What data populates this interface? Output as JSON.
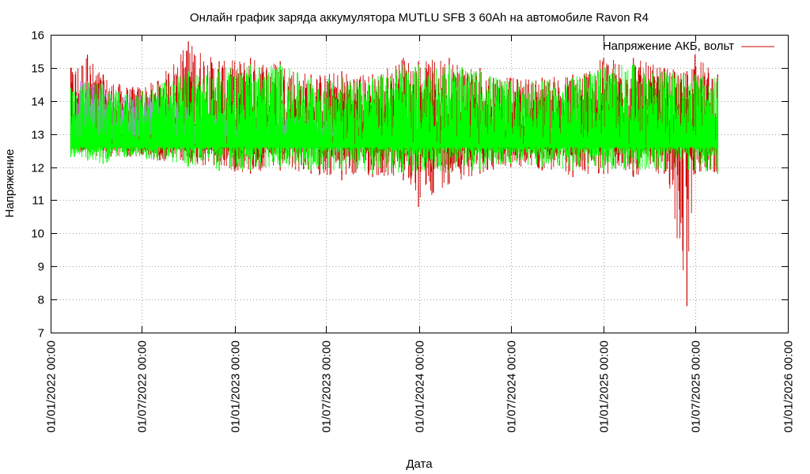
{
  "chart_data": {
    "type": "line",
    "title": "Онлайн график заряда аккумулятора MUTLU SFB 3 60Ah на автомобиле Ravon R4",
    "xlabel": "Дата",
    "ylabel": "Напряжение",
    "ylim": [
      7,
      16
    ],
    "xlim": [
      "2022-01-01",
      "2026-01-01"
    ],
    "y_ticks": [
      "7",
      "8",
      "9",
      "10",
      "11",
      "12",
      "13",
      "14",
      "15",
      "16"
    ],
    "x_ticks": [
      {
        "date": "2022-01-01",
        "label": "01/01/2022 00:00"
      },
      {
        "date": "2022-07-01",
        "label": "01/07/2022 00:00"
      },
      {
        "date": "2023-01-01",
        "label": "01/01/2023 00:00"
      },
      {
        "date": "2023-07-01",
        "label": "01/07/2023 00:00"
      },
      {
        "date": "2024-01-01",
        "label": "01/01/2024 00:00"
      },
      {
        "date": "2024-07-01",
        "label": "01/07/2024 00:00"
      },
      {
        "date": "2025-01-01",
        "label": "01/01/2025 00:00"
      },
      {
        "date": "2025-07-01",
        "label": "01/07/2025 00:00"
      },
      {
        "date": "2026-01-01",
        "label": "01/01/2026 00:00"
      }
    ],
    "grid": true,
    "legend_position": "top-right",
    "series": [
      {
        "name": "Напряжение АКБ, вольт",
        "color": "#cc0000",
        "points": [
          {
            "x": "2022-02-10",
            "min": 12.5,
            "max": 15.0
          },
          {
            "x": "2022-03-15",
            "min": 12.4,
            "max": 15.4
          },
          {
            "x": "2022-04-15",
            "min": 12.3,
            "max": 14.8
          },
          {
            "x": "2022-06-01",
            "min": 12.3,
            "max": 14.4
          },
          {
            "x": "2022-08-01",
            "min": 12.2,
            "max": 14.6
          },
          {
            "x": "2022-10-01",
            "min": 12.1,
            "max": 15.8
          },
          {
            "x": "2022-12-01",
            "min": 11.9,
            "max": 15.2
          },
          {
            "x": "2023-02-01",
            "min": 11.8,
            "max": 15.3
          },
          {
            "x": "2023-04-01",
            "min": 11.9,
            "max": 15.2
          },
          {
            "x": "2023-06-01",
            "min": 11.8,
            "max": 14.8
          },
          {
            "x": "2023-08-01",
            "min": 11.6,
            "max": 14.9
          },
          {
            "x": "2023-10-01",
            "min": 11.7,
            "max": 14.8
          },
          {
            "x": "2023-12-01",
            "min": 11.6,
            "max": 15.3
          },
          {
            "x": "2023-12-31",
            "min": 10.8,
            "max": 15.2
          },
          {
            "x": "2024-03-01",
            "min": 11.5,
            "max": 15.3
          },
          {
            "x": "2024-05-01",
            "min": 11.8,
            "max": 15.0
          },
          {
            "x": "2024-07-01",
            "min": 12.0,
            "max": 14.7
          },
          {
            "x": "2024-09-01",
            "min": 11.9,
            "max": 14.7
          },
          {
            "x": "2024-11-01",
            "min": 11.7,
            "max": 14.8
          },
          {
            "x": "2025-01-01",
            "min": 11.8,
            "max": 15.3
          },
          {
            "x": "2025-03-01",
            "min": 11.7,
            "max": 15.3
          },
          {
            "x": "2025-05-01",
            "min": 11.8,
            "max": 15.0
          },
          {
            "x": "2025-06-15",
            "min": 7.8,
            "max": 14.9
          },
          {
            "x": "2025-07-01",
            "min": 11.8,
            "max": 15.4
          },
          {
            "x": "2025-08-15",
            "min": 11.8,
            "max": 14.8
          }
        ]
      },
      {
        "name": "",
        "color": "#c080ff",
        "points": [
          {
            "x": "2022-02-10",
            "min": 12.8,
            "max": 13.3
          },
          {
            "x": "2022-03-01",
            "min": 12.6,
            "max": 14.6
          },
          {
            "x": "2022-04-15",
            "min": 12.7,
            "max": 14.5
          },
          {
            "x": "2022-06-01",
            "min": 12.8,
            "max": 14.2
          },
          {
            "x": "2022-08-01",
            "min": 12.6,
            "max": 14.2
          },
          {
            "x": "2022-10-01",
            "min": 12.5,
            "max": 13.8
          },
          {
            "x": "2023-05-01",
            "min": 12.5,
            "max": 13.5
          },
          {
            "x": "2023-08-01",
            "min": 12.4,
            "max": 13.4
          }
        ]
      },
      {
        "name": "",
        "color": "#00ff00",
        "points": [
          {
            "x": "2022-02-10",
            "min": 12.3,
            "max": 14.4
          },
          {
            "x": "2022-03-15",
            "min": 12.2,
            "max": 14.6
          },
          {
            "x": "2022-04-15",
            "min": 12.1,
            "max": 14.5
          },
          {
            "x": "2022-06-01",
            "min": 12.3,
            "max": 14.2
          },
          {
            "x": "2022-08-01",
            "min": 12.2,
            "max": 14.5
          },
          {
            "x": "2022-10-01",
            "min": 12.0,
            "max": 14.9
          },
          {
            "x": "2022-12-01",
            "min": 11.9,
            "max": 15.0
          },
          {
            "x": "2023-02-01",
            "min": 11.9,
            "max": 15.1
          },
          {
            "x": "2023-04-01",
            "min": 12.0,
            "max": 15.1
          },
          {
            "x": "2023-06-01",
            "min": 11.9,
            "max": 14.7
          },
          {
            "x": "2023-08-01",
            "min": 11.9,
            "max": 14.7
          },
          {
            "x": "2023-10-01",
            "min": 11.8,
            "max": 14.7
          },
          {
            "x": "2023-12-01",
            "min": 11.8,
            "max": 15.1
          },
          {
            "x": "2024-03-01",
            "min": 11.8,
            "max": 15.1
          },
          {
            "x": "2024-05-01",
            "min": 11.9,
            "max": 14.9
          },
          {
            "x": "2024-07-01",
            "min": 12.1,
            "max": 14.6
          },
          {
            "x": "2024-09-01",
            "min": 12.0,
            "max": 14.6
          },
          {
            "x": "2024-11-01",
            "min": 11.9,
            "max": 14.7
          },
          {
            "x": "2025-01-01",
            "min": 11.9,
            "max": 15.1
          },
          {
            "x": "2025-03-01",
            "min": 11.9,
            "max": 15.1
          },
          {
            "x": "2025-05-01",
            "min": 11.9,
            "max": 14.9
          },
          {
            "x": "2025-07-01",
            "min": 11.9,
            "max": 14.8
          },
          {
            "x": "2025-08-15",
            "min": 11.8,
            "max": 14.7
          }
        ]
      }
    ]
  }
}
